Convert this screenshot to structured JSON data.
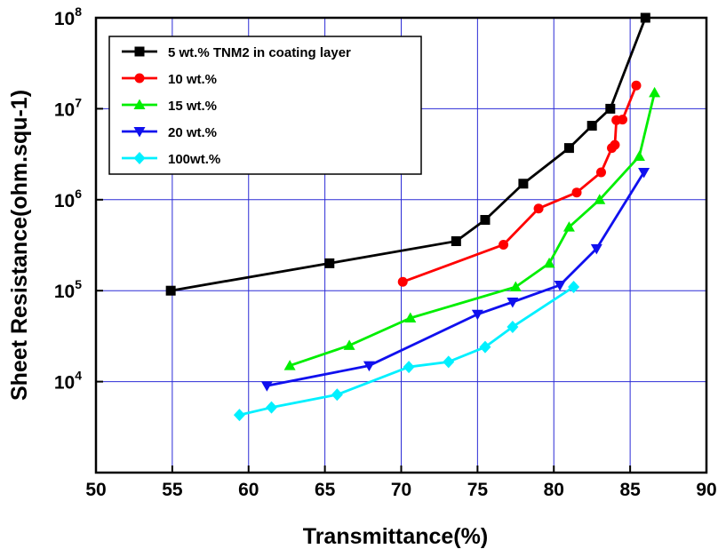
{
  "chart_data": {
    "type": "line",
    "title": "",
    "xlabel": "Transmittance(%)",
    "ylabel": "Sheet Resistance(ohm.squ-1)",
    "x_scale": "linear",
    "y_scale": "log",
    "xlim": [
      50,
      90
    ],
    "ylim": [
      1000,
      100000000
    ],
    "x_ticks": [
      50,
      55,
      60,
      65,
      70,
      75,
      80,
      85,
      90
    ],
    "y_ticks": [
      10000,
      100000,
      1000000,
      10000000,
      100000000
    ],
    "y_tick_labels": [
      {
        "base": "10",
        "exp": "4"
      },
      {
        "base": "10",
        "exp": "5"
      },
      {
        "base": "10",
        "exp": "6"
      },
      {
        "base": "10",
        "exp": "7"
      },
      {
        "base": "10",
        "exp": "8"
      }
    ],
    "grid": true,
    "grid_color": "#2b2bd6",
    "legend_position": "top-left",
    "series": [
      {
        "name": "5   wt.% TNM2 in coating layer",
        "color": "#000000",
        "marker": "square",
        "points": [
          [
            54.9,
            100000
          ],
          [
            65.3,
            200000
          ],
          [
            73.6,
            350000
          ],
          [
            75.5,
            600000
          ],
          [
            78.0,
            1500000
          ],
          [
            81.0,
            3700000
          ],
          [
            82.5,
            6500000
          ],
          [
            83.7,
            10000000
          ],
          [
            86.0,
            100000000
          ]
        ]
      },
      {
        "name": "10 wt.%",
        "color": "#ff0000",
        "marker": "circle",
        "points": [
          [
            70.1,
            125000
          ],
          [
            76.7,
            320000
          ],
          [
            79.0,
            800000
          ],
          [
            81.5,
            1200000
          ],
          [
            83.1,
            2000000
          ],
          [
            83.8,
            3700000
          ],
          [
            84.0,
            4000000
          ],
          [
            84.1,
            7500000
          ],
          [
            84.5,
            7600000
          ],
          [
            85.4,
            18000000
          ]
        ]
      },
      {
        "name": "15 wt.%",
        "color": "#00ee00",
        "marker": "triangle-up",
        "points": [
          [
            62.7,
            15000
          ],
          [
            66.6,
            25000
          ],
          [
            70.6,
            50000
          ],
          [
            77.5,
            110000
          ],
          [
            79.7,
            200000
          ],
          [
            81.0,
            500000
          ],
          [
            83.0,
            1000000
          ],
          [
            85.6,
            3000000
          ],
          [
            86.6,
            15000000
          ]
        ]
      },
      {
        "name": " 20 wt.%",
        "color": "#1010ee",
        "marker": "triangle-down",
        "points": [
          [
            61.2,
            9000
          ],
          [
            67.9,
            15000
          ],
          [
            75.0,
            55000
          ],
          [
            77.3,
            75000
          ],
          [
            80.4,
            115000
          ],
          [
            82.8,
            290000
          ],
          [
            85.9,
            2000000
          ]
        ]
      },
      {
        "name": "100wt.%",
        "color": "#00f0ff",
        "marker": "diamond",
        "points": [
          [
            59.4,
            4300
          ],
          [
            61.5,
            5200
          ],
          [
            65.8,
            7200
          ],
          [
            70.5,
            14500
          ],
          [
            73.1,
            16500
          ],
          [
            75.5,
            24000
          ],
          [
            77.3,
            40000
          ],
          [
            81.3,
            110000
          ]
        ]
      }
    ]
  }
}
